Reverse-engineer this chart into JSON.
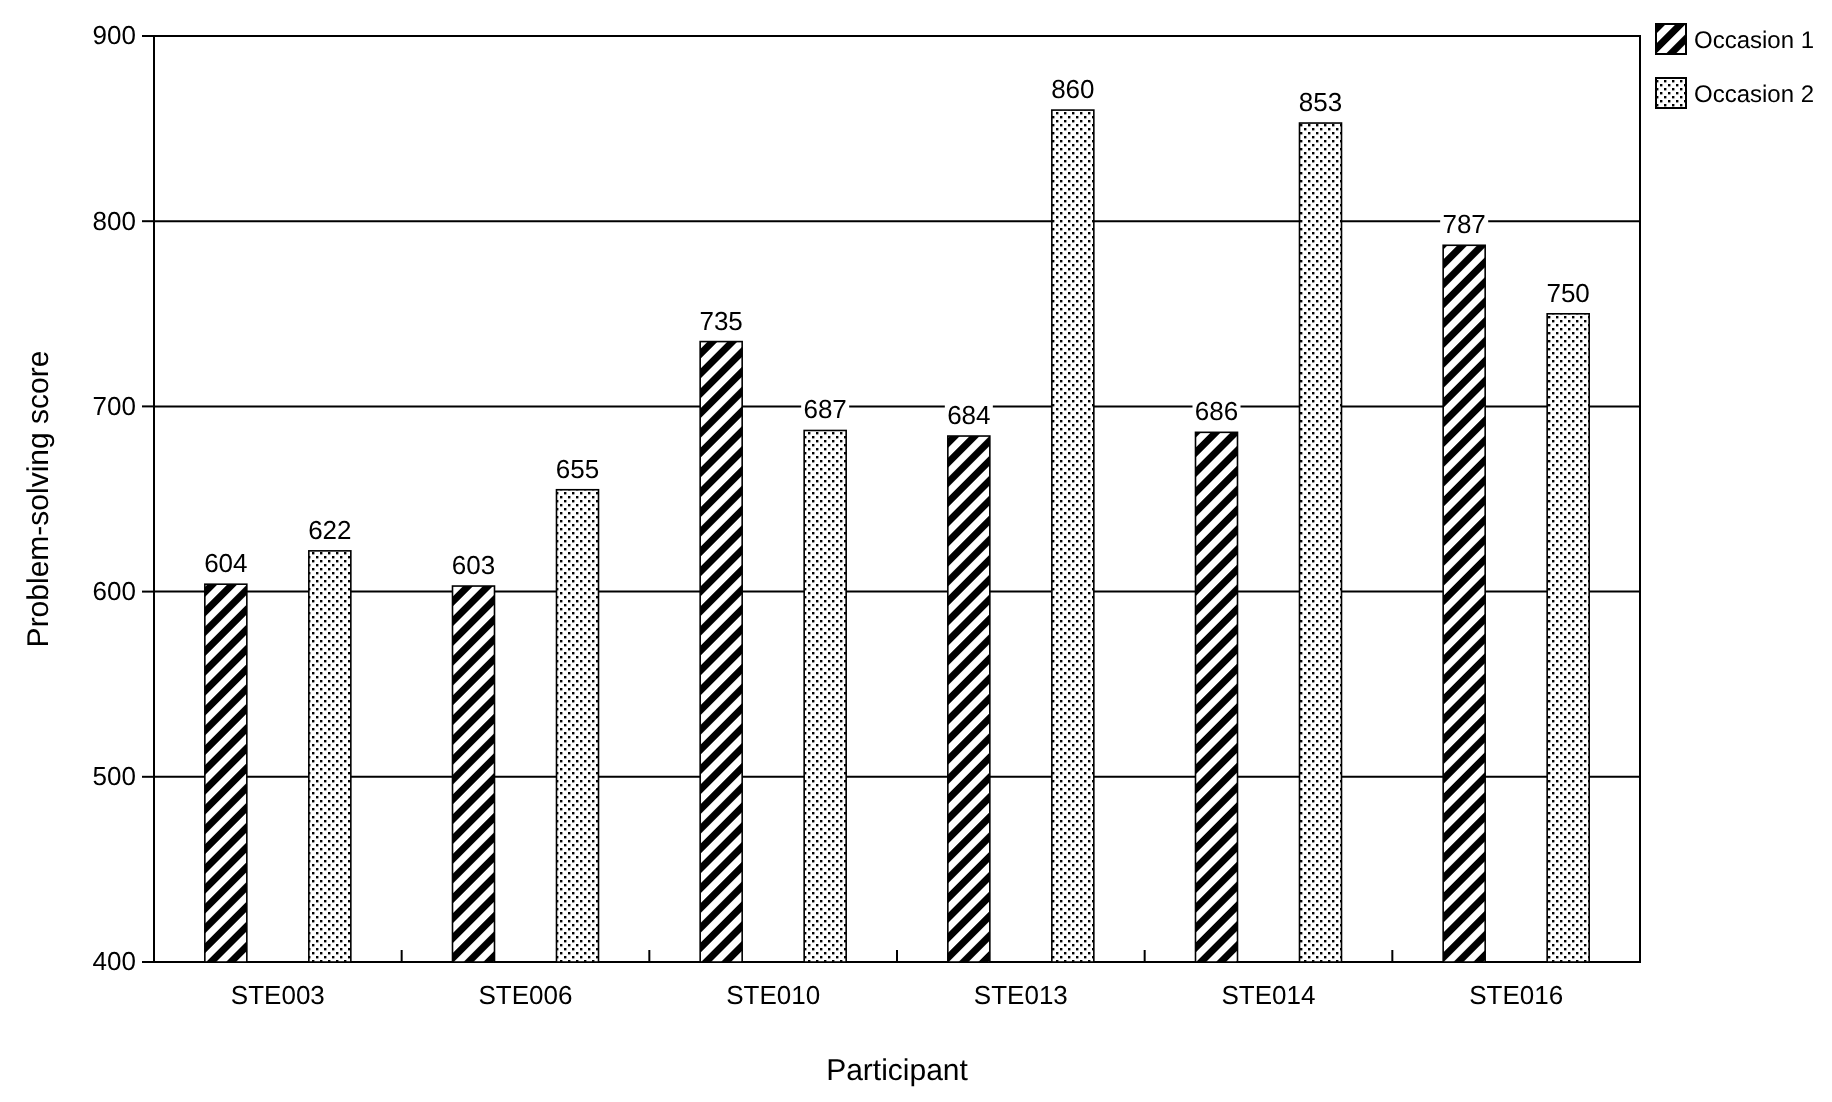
{
  "chart_data": {
    "type": "bar",
    "xlabel": "Participant",
    "ylabel": "Problem-solving score",
    "categories": [
      "STE003",
      "STE006",
      "STE010",
      "STE013",
      "STE014",
      "STE016"
    ],
    "series": [
      {
        "name": "Occasion 1",
        "color": "#000000",
        "values": [
          604,
          603,
          735,
          684,
          686,
          787
        ]
      },
      {
        "name": "Occasion 2",
        "color": "#000000",
        "values": [
          622,
          655,
          687,
          860,
          853,
          750
        ]
      }
    ],
    "ylim": [
      400,
      900
    ],
    "yticks": [
      400,
      500,
      600,
      700,
      800,
      900
    ],
    "grid": "y",
    "legend": "top right",
    "data_labels": true
  }
}
